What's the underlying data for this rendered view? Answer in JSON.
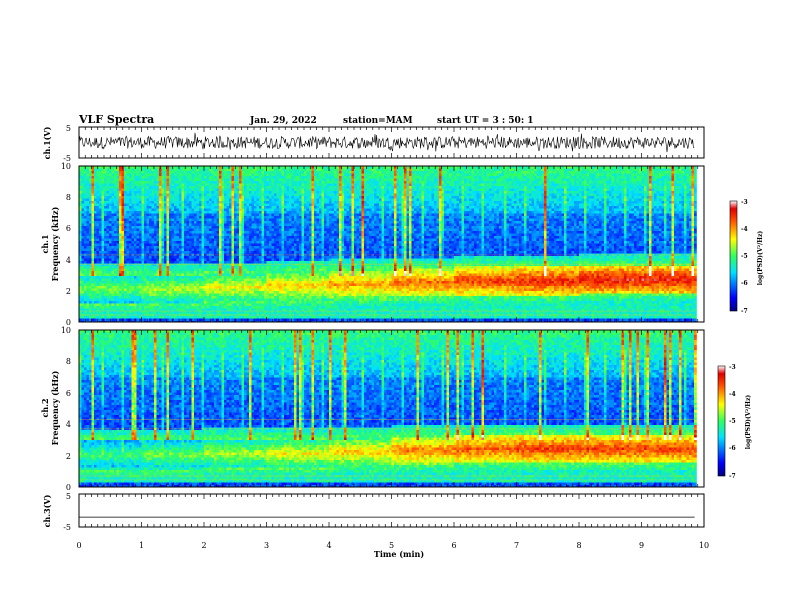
{
  "header": {
    "title": "VLF Spectra",
    "date": "Jan. 29, 2022",
    "station": "station=MAM",
    "start": "start UT =  3 : 50: 1"
  },
  "chart_data": [
    {
      "type": "line",
      "name": "ch1-waveform",
      "ylabel": "ch.1(V)",
      "ylim": [
        -5,
        5
      ],
      "yticks": [
        "5",
        "-5"
      ],
      "description_trace": "dense oscillating waveform, amplitude about -2 to +2 V, with periodic spikes",
      "amplitude": 2
    },
    {
      "type": "heatmap",
      "name": "ch1-spectrogram",
      "ylabel": "ch.1\nFrequency (kHz)",
      "ylabel_line1": "ch.1",
      "ylabel_line2": "Frequency (kHz)",
      "ylim": [
        0,
        10
      ],
      "yticks": [
        "0",
        "2",
        "4",
        "6",
        "8",
        "10"
      ],
      "band_center_khz": [
        2.2,
        2.2,
        2.3,
        2.4,
        2.5,
        2.6,
        2.7,
        2.7,
        2.8,
        2.8
      ],
      "band_intensity": [
        0.55,
        0.6,
        0.65,
        0.7,
        0.75,
        0.8,
        0.85,
        0.88,
        0.9,
        0.9
      ],
      "colorbar": {
        "label": "log(PSD)(V²/Hz)",
        "ticks": [
          "-3",
          "-4",
          "-5",
          "-6",
          "-7"
        ],
        "range": [
          -7,
          -3
        ]
      }
    },
    {
      "type": "heatmap",
      "name": "ch2-spectrogram",
      "ylabel_line1": "ch.2",
      "ylabel_line2": "Frequency (kHz)",
      "ylim": [
        0,
        10
      ],
      "yticks": [
        "0",
        "2",
        "4",
        "6",
        "8",
        "10"
      ],
      "band_center_khz": [
        2.1,
        2.1,
        2.2,
        2.2,
        2.3,
        2.4,
        2.5,
        2.5,
        2.5,
        2.5
      ],
      "band_intensity": [
        0.5,
        0.55,
        0.6,
        0.65,
        0.7,
        0.78,
        0.82,
        0.85,
        0.85,
        0.85
      ],
      "colorbar": {
        "label": "log(PSD)(V²/Hz)",
        "ticks": [
          "-3",
          "-4",
          "-5",
          "-6",
          "-7"
        ],
        "range": [
          -7,
          -3
        ]
      }
    },
    {
      "type": "line",
      "name": "ch3-waveform",
      "ylabel": "ch.3(V)",
      "ylim": [
        -5,
        5
      ],
      "yticks": [
        "5",
        "-5"
      ],
      "value": -2
    }
  ],
  "xaxis": {
    "label": "Time (min)",
    "xlim": [
      0,
      10
    ],
    "ticks": [
      "0",
      "1",
      "2",
      "3",
      "4",
      "5",
      "6",
      "7",
      "8",
      "9",
      "10"
    ],
    "data_end_min": 9.85
  }
}
